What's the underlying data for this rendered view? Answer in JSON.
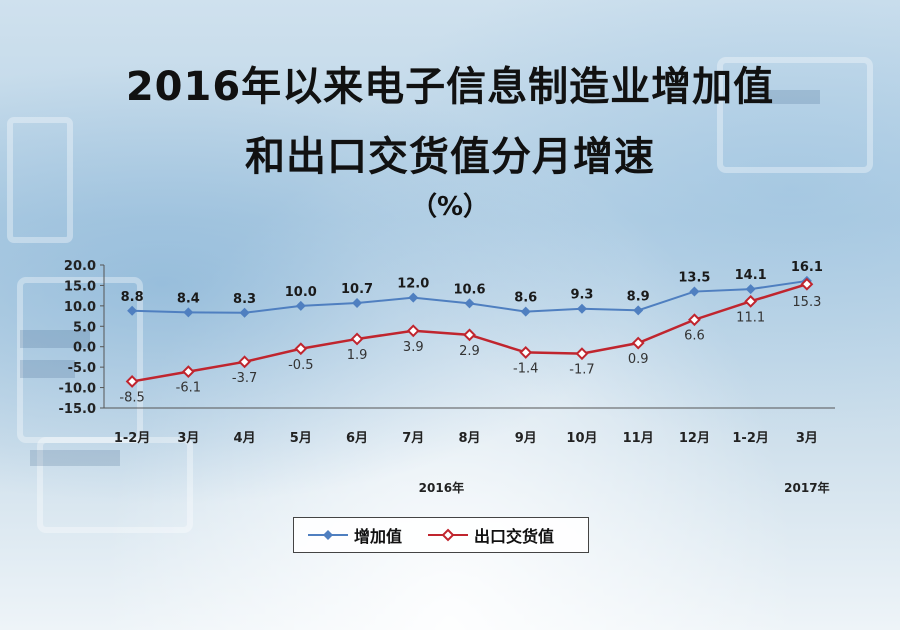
{
  "title_line1": "2016年以来电子信息制造业增加值",
  "title_line2": "和出口交货值分月增速",
  "unit": "（%）",
  "chart_data": {
    "type": "line",
    "categories": [
      "1-2月",
      "3月",
      "4月",
      "5月",
      "6月",
      "7月",
      "8月",
      "9月",
      "10月",
      "11月",
      "12月",
      "1-2月",
      "3月"
    ],
    "year_labels": [
      "2016年",
      "2017年"
    ],
    "ylim": [
      -15,
      20
    ],
    "yticks": [
      "20.0",
      "15.0",
      "10.0",
      "5.0",
      "0.0",
      "-5.0",
      "-10.0",
      "-15.0"
    ],
    "grid": false,
    "legend_position": "bottom",
    "series": [
      {
        "name": "增加值",
        "color": "#4f7fc0",
        "marker": "diamond-filled",
        "values": [
          8.8,
          8.4,
          8.3,
          10.0,
          10.7,
          12.0,
          10.6,
          8.6,
          9.3,
          8.9,
          13.5,
          14.1,
          16.1
        ],
        "labels": [
          "8.8",
          "8.4",
          "8.3",
          "10.0",
          "10.7",
          "12.0",
          "10.6",
          "8.6",
          "9.3",
          "8.9",
          "13.5",
          "14.1",
          "16.1"
        ]
      },
      {
        "name": "出口交货值",
        "color": "#c0252e",
        "marker": "diamond-hollow",
        "values": [
          -8.5,
          -6.1,
          -3.7,
          -0.5,
          1.9,
          3.9,
          2.9,
          -1.4,
          -1.7,
          0.9,
          6.6,
          11.1,
          15.3
        ],
        "labels": [
          "-8.5",
          "-6.1",
          "-3.7",
          "-0.5",
          "1.9",
          "3.9",
          "2.9",
          "-1.4",
          "-1.7",
          "0.9",
          "6.6",
          "11.1",
          "15.3"
        ]
      }
    ]
  }
}
